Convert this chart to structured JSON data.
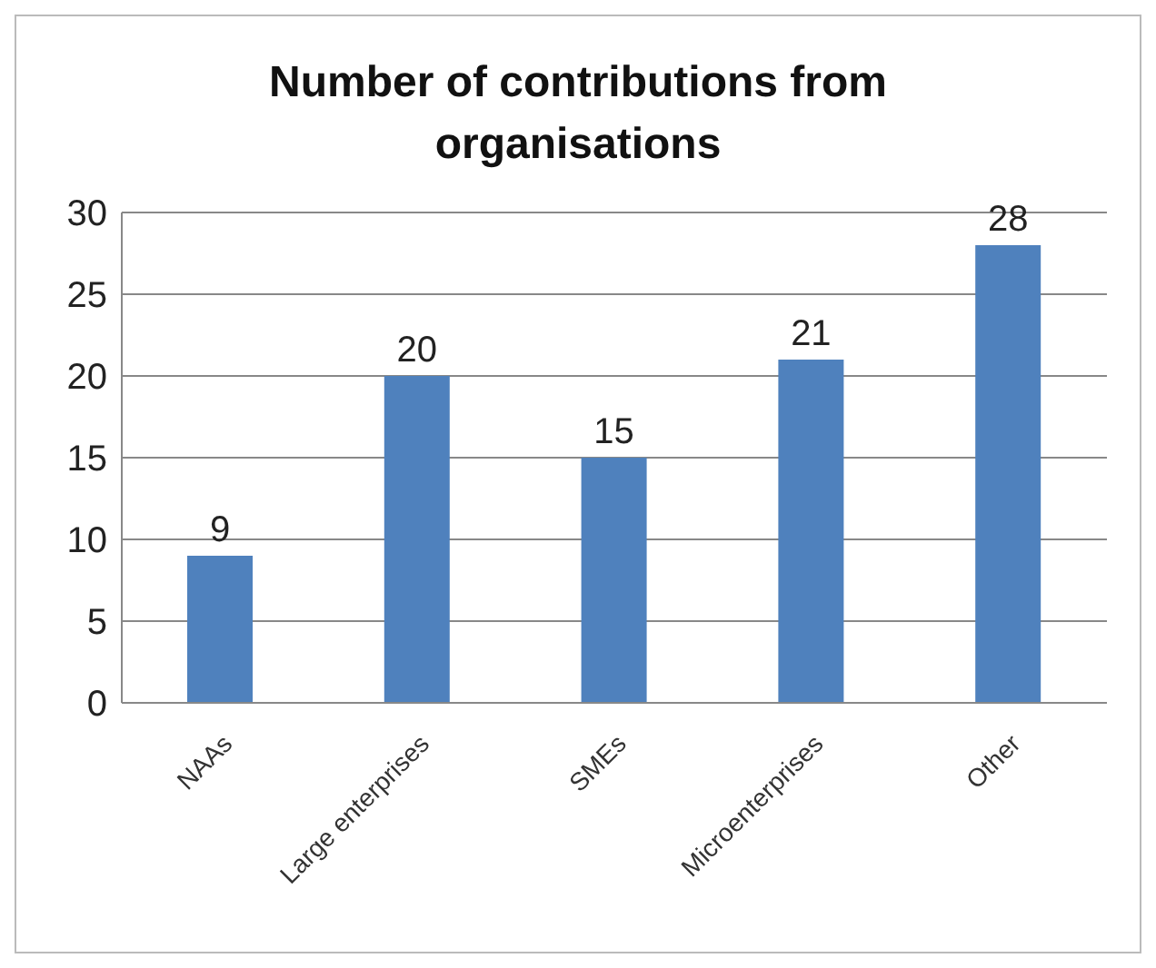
{
  "chart_data": {
    "type": "bar",
    "title": "Number of contributions from organisations",
    "categories": [
      "NAAs",
      "Large enterprises",
      "SMEs",
      "Microenterprises",
      "Other"
    ],
    "values": [
      9,
      20,
      15,
      21,
      28
    ],
    "color": "#4f81bd",
    "ylim": [
      0,
      30
    ],
    "yticks": [
      0,
      5,
      10,
      15,
      20,
      25,
      30
    ],
    "grid": "y",
    "data_labels": true
  }
}
